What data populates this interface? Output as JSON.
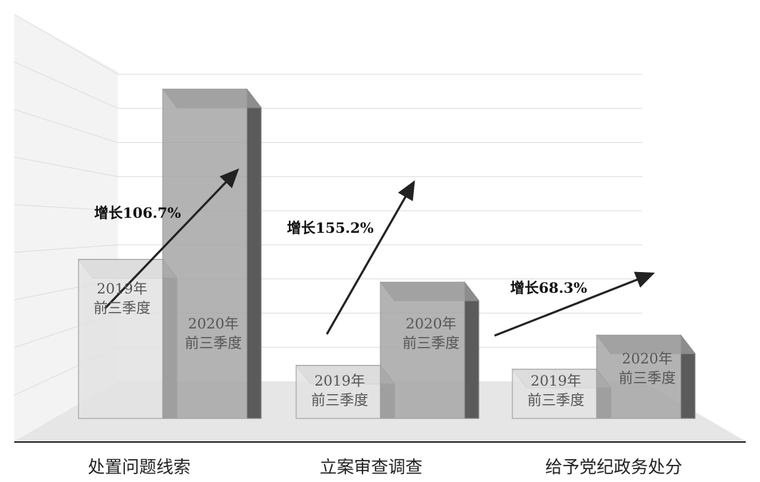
{
  "chart_data": {
    "type": "bar3d",
    "categories": [
      "处置问题线索",
      "立案审查调查",
      "给予党纪政务处分"
    ],
    "series": [
      {
        "name": "2019年\n前三季度",
        "color": "#e2e2e2",
        "values": [
          4.2,
          1.4,
          1.3
        ]
      },
      {
        "name": "2020年\n前三季度",
        "color": "#a6a6a6",
        "values": [
          8.7,
          3.6,
          2.2
        ]
      }
    ],
    "annotations": [
      "增长106.7%",
      "增长155.2%",
      "增长68.3%"
    ],
    "ylim": [
      0,
      9
    ],
    "yticks": [
      1,
      2,
      3,
      4,
      5,
      6,
      7,
      8,
      9
    ],
    "grid": true
  }
}
